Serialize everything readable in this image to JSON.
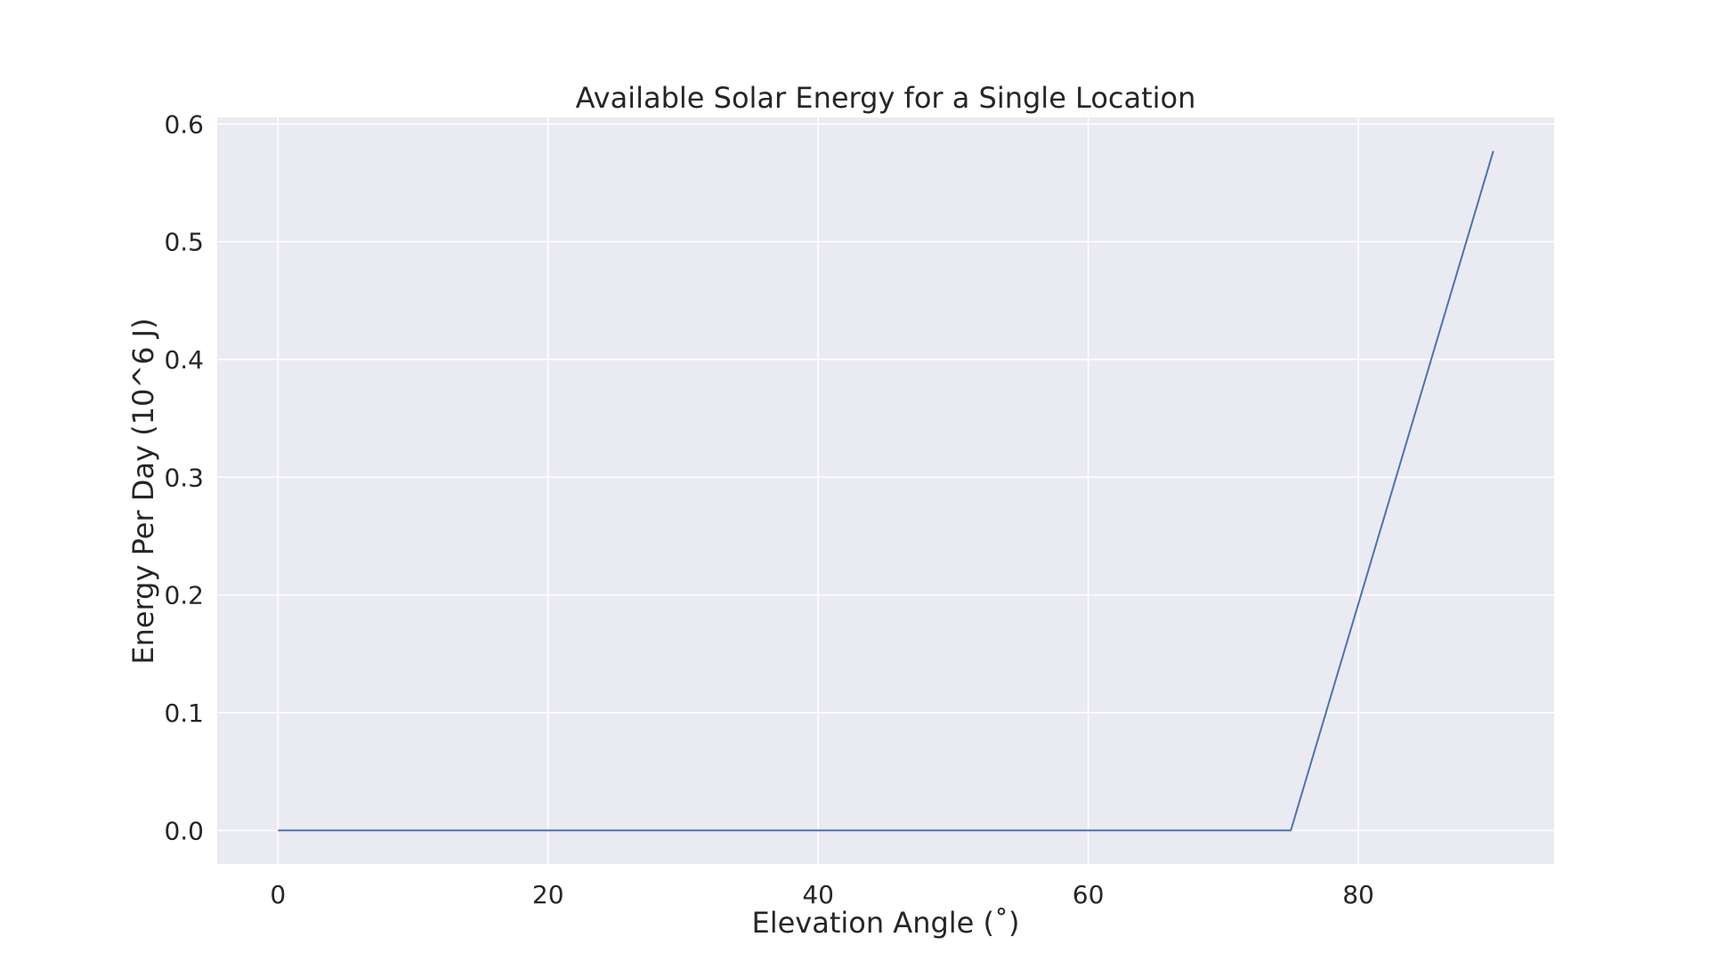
{
  "chart_data": {
    "type": "line",
    "title": "Available Solar Energy for a Single Location",
    "xlabel": "Elevation Angle (˚)",
    "ylabel": "Energy Per Day (10^6 J)",
    "xlim": [
      -4.5,
      94.5
    ],
    "ylim": [
      -0.0285,
      0.6055
    ],
    "xticks": [
      0,
      20,
      40,
      60,
      80
    ],
    "xtick_labels": [
      "0",
      "20",
      "40",
      "60",
      "80"
    ],
    "yticks": [
      0.0,
      0.1,
      0.2,
      0.3,
      0.4,
      0.5,
      0.6
    ],
    "ytick_labels": [
      "0.0",
      "0.1",
      "0.2",
      "0.3",
      "0.4",
      "0.5",
      "0.6"
    ],
    "grid": true,
    "series": [
      {
        "color": "#4c72b0",
        "x": [
          0,
          75,
          90
        ],
        "y": [
          0.0,
          0.0,
          0.577
        ]
      }
    ],
    "background": "#eaeaf2",
    "grid_color": "#ffffff"
  }
}
